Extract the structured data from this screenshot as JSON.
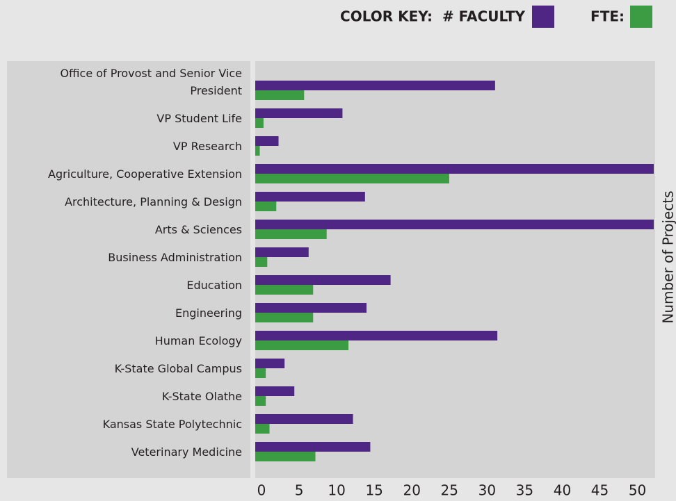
{
  "chart_data": {
    "type": "hbar",
    "legend_title": "COLOR KEY:",
    "axis_label": "Number of Projects",
    "categories": [
      "Office of Provost and Senior Vice President",
      "VP Student Life",
      "VP Research",
      "Agriculture, Cooperative Extension",
      "Architecture, Planning & Design",
      "Arts & Sciences",
      "Business Administration",
      "Education",
      "Engineering",
      "Human Ecology",
      "K-State Global Campus",
      "K-State Olathe",
      "Kansas State Polytechnic",
      "Veterinary Medicine"
    ],
    "series": [
      {
        "name": "# FACULTY",
        "color": "#4f2683",
        "values": [
          31.9,
          11.6,
          3.1,
          53,
          14.6,
          53,
          7.1,
          18.0,
          14.8,
          32.2,
          3.9,
          5.2,
          13.0,
          15.3
        ]
      },
      {
        "name": "FTE:",
        "color": "#3c9c44",
        "values": [
          6.5,
          1.1,
          0.6,
          25.8,
          2.8,
          9.5,
          1.6,
          7.7,
          7.7,
          12.4,
          1.4,
          1.4,
          1.9,
          8.0
        ]
      }
    ],
    "xlim": [
      0,
      53
    ],
    "xticks": [
      0,
      5,
      10,
      15,
      20,
      25,
      30,
      35,
      40,
      45,
      50
    ]
  }
}
